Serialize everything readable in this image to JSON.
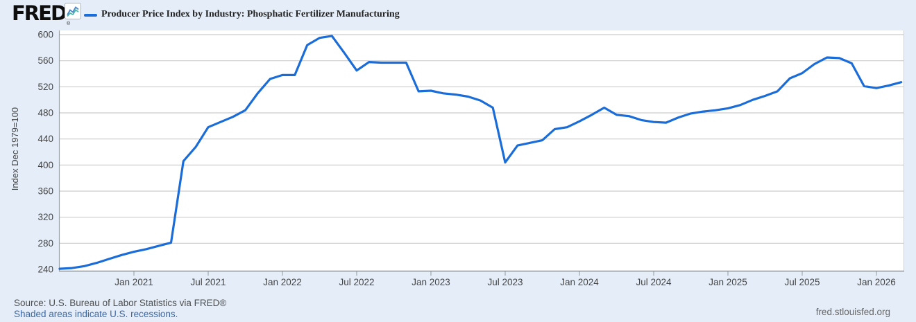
{
  "header": {
    "logo_text": "FRED",
    "logo_registered": "®",
    "title": "Producer Price Index by Industry: Phosphatic Fertilizer Manufacturing"
  },
  "footer": {
    "source": "Source: U.S. Bureau of Labor Statistics via FRED®",
    "recession_note": "Shaded areas indicate U.S. recessions.",
    "site_link": "fred.stlouisfed.org"
  },
  "colors": {
    "line": "#1a6cd8",
    "background": "#e5eef8",
    "plot_background": "#ffffff",
    "gridline": "#cccccc",
    "axis_line": "#8f959c",
    "axis_text": "#444444",
    "link_blue": "#3a66a5",
    "icon_line_blue": "#4e86c6",
    "icon_line_teal": "#46b8ab"
  },
  "chart_data": {
    "type": "line",
    "title": "Producer Price Index by Industry: Phosphatic Fertilizer Manufacturing",
    "xlabel": "",
    "ylabel": "Index Dec 1979=100",
    "ylim": [
      240,
      600
    ],
    "grid": true,
    "legend_position": "top",
    "y_ticks": [
      600,
      560,
      520,
      480,
      440,
      400,
      360,
      320,
      280,
      240
    ],
    "x_ticks": [
      {
        "label": "Jan 2021",
        "month_index": 6
      },
      {
        "label": "Jul 2021",
        "month_index": 12
      },
      {
        "label": "Jan 2022",
        "month_index": 18
      },
      {
        "label": "Jul 2022",
        "month_index": 24
      },
      {
        "label": "Jan 2023",
        "month_index": 30
      },
      {
        "label": "Jul 2023",
        "month_index": 36
      },
      {
        "label": "Jan 2024",
        "month_index": 42
      },
      {
        "label": "Jul 2024",
        "month_index": 48
      },
      {
        "label": "Jan 2025",
        "month_index": 54
      },
      {
        "label": "Jul 2025",
        "month_index": 60
      },
      {
        "label": "Jan 2026",
        "month_index": 66
      }
    ],
    "x": [
      "Jul 2020",
      "Aug 2020",
      "Sep 2020",
      "Oct 2020",
      "Nov 2020",
      "Dec 2020",
      "Jan 2021",
      "Feb 2021",
      "Mar 2021",
      "Apr 2021",
      "May 2021",
      "Jun 2021",
      "Jul 2021",
      "Aug 2021",
      "Sep 2021",
      "Oct 2021",
      "Nov 2021",
      "Dec 2021",
      "Jan 2022",
      "Feb 2022",
      "Mar 2022",
      "Apr 2022",
      "May 2022",
      "Jun 2022",
      "Jul 2022",
      "Aug 2022",
      "Sep 2022",
      "Oct 2022",
      "Nov 2022",
      "Dec 2022",
      "Jan 2023",
      "Feb 2023",
      "Mar 2023",
      "Apr 2023",
      "May 2023",
      "Jun 2023",
      "Jul 2023",
      "Aug 2023",
      "Sep 2023",
      "Oct 2023",
      "Nov 2023",
      "Dec 2023",
      "Jan 2024",
      "Feb 2024",
      "Mar 2024",
      "Apr 2024",
      "May 2024",
      "Jun 2024",
      "Jul 2024",
      "Aug 2024",
      "Sep 2024",
      "Oct 2024",
      "Nov 2024",
      "Dec 2024",
      "Jan 2025",
      "Feb 2025",
      "Mar 2025",
      "Apr 2025",
      "May 2025",
      "Jun 2025",
      "Jul 2025",
      "Aug 2025",
      "Sep 2025",
      "Oct 2025",
      "Nov 2025",
      "Dec 2025",
      "Jan 2026",
      "Feb 2026",
      "Mar 2026"
    ],
    "series": [
      {
        "name": "Producer Price Index by Industry: Phosphatic Fertilizer Manufacturing",
        "values": [
          241,
          242,
          245,
          250,
          256,
          262,
          267,
          271,
          276,
          281,
          406,
          428,
          458,
          466,
          474,
          484,
          510,
          532,
          538,
          538,
          584,
          595,
          598,
          572,
          545,
          558,
          557,
          557,
          557,
          513,
          514,
          510,
          508,
          505,
          499,
          488,
          404,
          430,
          434,
          438,
          455,
          458,
          467,
          477,
          488,
          477,
          475,
          469,
          466,
          465,
          473,
          479,
          482,
          484,
          487,
          492,
          500,
          506,
          513,
          533,
          541,
          555,
          565,
          564,
          556,
          521,
          518,
          522,
          527
        ]
      }
    ]
  }
}
